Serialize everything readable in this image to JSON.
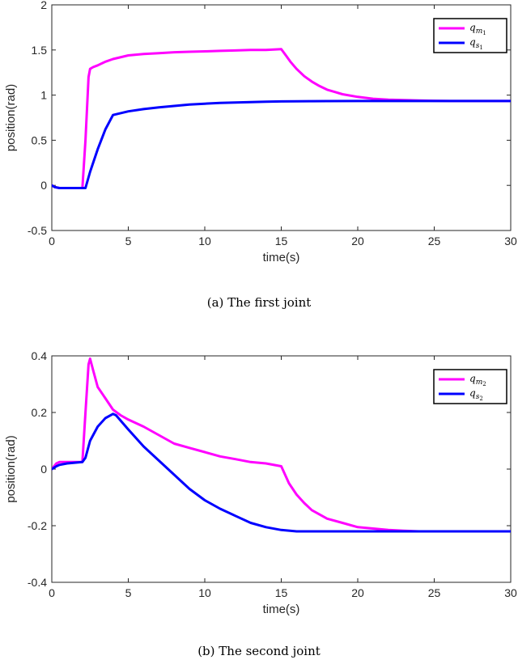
{
  "chart_data": [
    {
      "type": "line",
      "caption": "(a)  The first joint",
      "xlabel": "time(s)",
      "ylabel": "position(rad)",
      "xlim": [
        0,
        30
      ],
      "ylim": [
        -0.5,
        2
      ],
      "xticks": [
        0,
        5,
        10,
        15,
        20,
        25,
        30
      ],
      "yticks": [
        -0.5,
        0,
        0.5,
        1,
        1.5,
        2
      ],
      "ytick_labels": [
        "-0.5",
        "0",
        "0.5",
        "1",
        "1.5",
        "2"
      ],
      "grid": false,
      "legend_position": "top-right",
      "series": [
        {
          "name": "q_{m_1}",
          "legend_base": "q",
          "legend_sub": "m",
          "legend_subsub": "1",
          "color": "#ff00ff",
          "x": [
            0,
            0.2,
            0.5,
            1.0,
            2.0,
            2.2,
            2.4,
            2.5,
            2.7,
            3.0,
            3.5,
            4.0,
            5.0,
            6.0,
            7.0,
            8.0,
            9.0,
            10.0,
            11.0,
            12.0,
            13.0,
            14.0,
            15.0,
            15.3,
            15.6,
            16.0,
            16.5,
            17.0,
            17.5,
            18.0,
            18.5,
            19.0,
            20.0,
            21.0,
            22.0,
            23.0,
            24.0,
            25.0,
            26.0,
            27.0,
            28.0,
            29.0,
            30.0
          ],
          "y": [
            0,
            -0.02,
            -0.03,
            -0.03,
            -0.03,
            0.5,
            1.2,
            1.29,
            1.31,
            1.33,
            1.37,
            1.4,
            1.44,
            1.455,
            1.465,
            1.475,
            1.48,
            1.485,
            1.49,
            1.495,
            1.5,
            1.5,
            1.51,
            1.44,
            1.37,
            1.29,
            1.21,
            1.15,
            1.1,
            1.06,
            1.035,
            1.01,
            0.98,
            0.96,
            0.95,
            0.945,
            0.94,
            0.937,
            0.935,
            0.935,
            0.935,
            0.935,
            0.935
          ]
        },
        {
          "name": "q_{s_1}",
          "legend_base": "q",
          "legend_sub": "s",
          "legend_subsub": "1",
          "color": "#0000ff",
          "x": [
            0,
            0.2,
            0.5,
            1.0,
            2.0,
            2.2,
            2.5,
            3.0,
            3.5,
            4.0,
            5.0,
            6.0,
            7.0,
            8.0,
            9.0,
            10.0,
            11.0,
            12.0,
            13.0,
            14.0,
            15.0,
            16.0,
            17.0,
            18.0,
            20.0,
            22.0,
            25.0,
            30.0
          ],
          "y": [
            0,
            -0.02,
            -0.03,
            -0.03,
            -0.03,
            -0.03,
            0.15,
            0.4,
            0.62,
            0.78,
            0.82,
            0.845,
            0.865,
            0.88,
            0.895,
            0.905,
            0.913,
            0.918,
            0.923,
            0.927,
            0.93,
            0.932,
            0.933,
            0.934,
            0.935,
            0.935,
            0.935,
            0.935
          ]
        }
      ]
    },
    {
      "type": "line",
      "caption": "(b)  The second joint",
      "xlabel": "time(s)",
      "ylabel": "position(rad)",
      "xlim": [
        0,
        30
      ],
      "ylim": [
        -0.4,
        0.4
      ],
      "xticks": [
        0,
        5,
        10,
        15,
        20,
        25,
        30
      ],
      "yticks": [
        -0.4,
        -0.2,
        0,
        0.2,
        0.4
      ],
      "ytick_labels": [
        "-0.4",
        "-0.2",
        "0",
        "0.2",
        "0.4"
      ],
      "grid": false,
      "legend_position": "top-right",
      "series": [
        {
          "name": "q_{m_2}",
          "legend_base": "q",
          "legend_sub": "m",
          "legend_subsub": "2",
          "color": "#ff00ff",
          "x": [
            0,
            0.3,
            0.5,
            1.0,
            2.0,
            2.2,
            2.4,
            2.5,
            2.7,
            3.0,
            3.5,
            4.0,
            4.5,
            5.0,
            6.0,
            7.0,
            8.0,
            9.0,
            10.0,
            11.0,
            12.0,
            13.0,
            14.0,
            15.0,
            15.5,
            16.0,
            16.5,
            17.0,
            18.0,
            19.0,
            20.0,
            21.0,
            22.0,
            23.0,
            24.0,
            25.0,
            26.0,
            28.0,
            30.0
          ],
          "y": [
            0,
            0.02,
            0.025,
            0.025,
            0.025,
            0.2,
            0.37,
            0.39,
            0.35,
            0.29,
            0.25,
            0.21,
            0.19,
            0.175,
            0.15,
            0.12,
            0.09,
            0.075,
            0.06,
            0.045,
            0.035,
            0.025,
            0.02,
            0.01,
            -0.05,
            -0.09,
            -0.12,
            -0.145,
            -0.175,
            -0.19,
            -0.205,
            -0.21,
            -0.215,
            -0.218,
            -0.22,
            -0.22,
            -0.22,
            -0.22,
            -0.22
          ]
        },
        {
          "name": "q_{s_2}",
          "legend_base": "q",
          "legend_sub": "s",
          "legend_subsub": "2",
          "color": "#0000ff",
          "x": [
            0,
            0.3,
            0.5,
            1.0,
            2.0,
            2.2,
            2.5,
            3.0,
            3.5,
            4.0,
            4.2,
            5.0,
            6.0,
            7.0,
            8.0,
            9.0,
            10.0,
            11.0,
            12.0,
            13.0,
            14.0,
            15.0,
            16.0,
            16.5,
            17.0,
            18.0,
            20.0,
            25.0,
            30.0
          ],
          "y": [
            0,
            0.01,
            0.015,
            0.02,
            0.025,
            0.04,
            0.1,
            0.15,
            0.18,
            0.195,
            0.19,
            0.14,
            0.08,
            0.03,
            -0.02,
            -0.07,
            -0.11,
            -0.14,
            -0.165,
            -0.19,
            -0.205,
            -0.215,
            -0.22,
            -0.22,
            -0.22,
            -0.22,
            -0.22,
            -0.22,
            -0.22
          ]
        }
      ]
    }
  ]
}
